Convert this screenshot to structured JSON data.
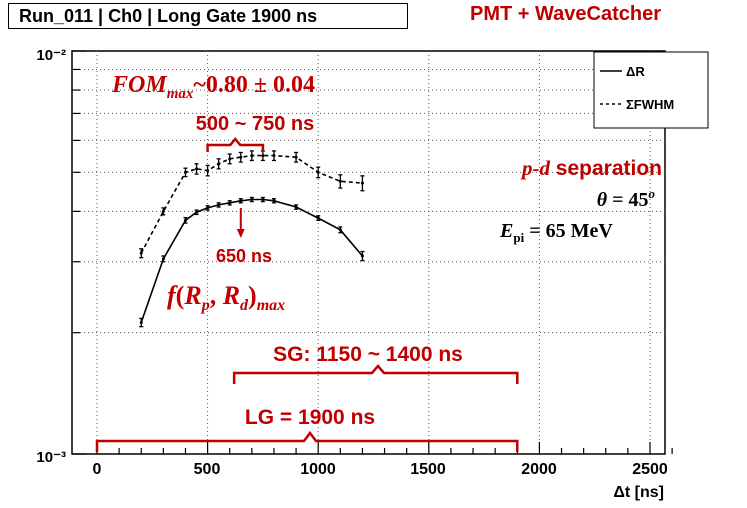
{
  "header": {
    "title": "Run_011 | Ch0 | Long Gate 1900 ns",
    "brand": "PMT + WaveCatcher"
  },
  "chart_data": {
    "type": "line",
    "title": "Run_011 | Ch0 | Long Gate 1900 ns",
    "xlabel": "Δt [ns]",
    "ylabel": "",
    "yscale": "log",
    "xlim": [
      0,
      2600
    ],
    "ylim": [
      0.001,
      0.01
    ],
    "grid": true,
    "x_ticks": [
      "0",
      "500",
      "1000",
      "1500",
      "2000",
      "2500"
    ],
    "y_ticks": [
      "10⁻³",
      "10⁻²"
    ],
    "legend": {
      "placement": "top-right",
      "entries": [
        "ΔR",
        "ΣFWHM"
      ]
    },
    "series": [
      {
        "name": "ΔR",
        "style": "solid",
        "x": [
          200,
          300,
          400,
          450,
          500,
          550,
          600,
          650,
          700,
          750,
          800,
          900,
          1000,
          1100,
          1200
        ],
        "y": [
          0.00212,
          0.00305,
          0.0038,
          0.00398,
          0.00408,
          0.00415,
          0.0042,
          0.00425,
          0.00428,
          0.00428,
          0.00425,
          0.0041,
          0.00385,
          0.0036,
          0.0031
        ],
        "err": [
          5e-05,
          5e-05,
          6e-05,
          5e-05,
          5e-05,
          5e-05,
          5e-05,
          5e-05,
          5e-05,
          5e-05,
          5e-05,
          5e-05,
          5e-05,
          6e-05,
          8e-05
        ]
      },
      {
        "name": "ΣFWHM",
        "style": "dashed",
        "x": [
          200,
          300,
          400,
          450,
          500,
          550,
          600,
          650,
          700,
          750,
          800,
          900,
          1000,
          1100,
          1200
        ],
        "y": [
          0.00315,
          0.004,
          0.005,
          0.0051,
          0.00505,
          0.00525,
          0.0054,
          0.00545,
          0.0055,
          0.0055,
          0.0055,
          0.00545,
          0.005,
          0.00475,
          0.0047
        ],
        "err": [
          8e-05,
          8e-05,
          0.00012,
          0.00015,
          0.00015,
          0.00015,
          0.00015,
          0.00015,
          0.00015,
          0.00015,
          0.00015,
          0.00015,
          0.00015,
          0.00018,
          0.0002
        ]
      }
    ],
    "annotations": {
      "fom": "FOM",
      "fom_sub": "max",
      "fom_value": "~0.80 ± 0.04",
      "range_label": "500 ~ 750 ns",
      "peak_label": "650 ns",
      "fmax_f": "f",
      "fmax_open": "(",
      "fmax_R1": "R",
      "fmax_sub1": "p",
      "fmax_comma": ", ",
      "fmax_R2": "R",
      "fmax_sub2": "d",
      "fmax_close": ")",
      "fmax_sub": "max",
      "sep_pd": "p-d",
      "sep_word": " separation",
      "theta": "θ",
      "theta_eq": " = 45",
      "theta_sup": "o",
      "energy": "E",
      "energy_sub": "pi",
      "energy_eq": " = 65 MeV",
      "sg_label": "SG: 1150 ~ 1400 ns",
      "lg_label": "LG = 1900 ns"
    },
    "brackets": {
      "fom_range": [
        500,
        750
      ],
      "sg_range": [
        620,
        1900
      ],
      "lg_range": [
        0,
        1900
      ],
      "peak_x": 650
    }
  },
  "colors": {
    "accent": "#c00000",
    "axis": "#000000",
    "grid": "#555555"
  }
}
